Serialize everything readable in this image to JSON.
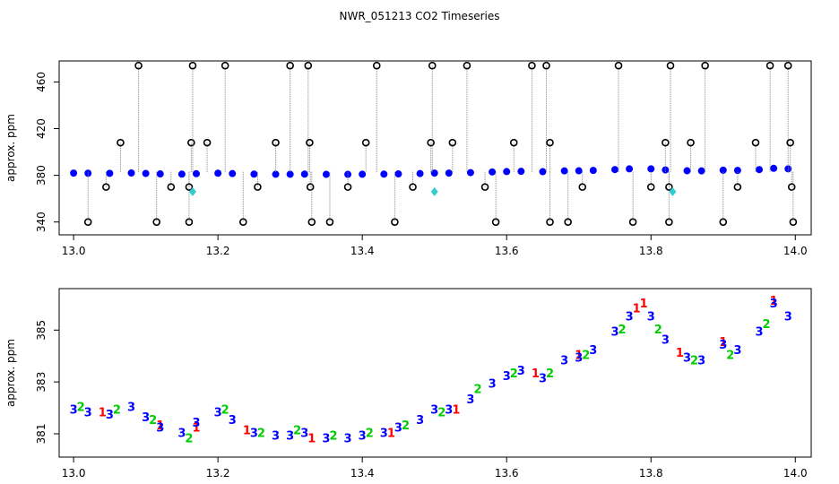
{
  "title": "NWR_051213  CO2 Timeseries",
  "chart_data": [
    {
      "type": "scatter",
      "ylabel": "approx. ppm",
      "xlim": [
        12.98,
        14.022
      ],
      "ylim": [
        329,
        478
      ],
      "xticks": [
        {
          "value": 13,
          "label": "13.0"
        },
        13.2,
        13.4,
        13.6,
        13.8,
        {
          "value": 14,
          "label": "14.0"
        }
      ],
      "yticks": [
        340,
        380,
        420,
        460
      ],
      "series": [
        {
          "color": "#0000ff",
          "shape": "circle",
          "x": [
            13.0,
            13.02,
            13.05,
            13.08,
            13.1,
            13.12,
            13.15,
            13.17,
            13.2,
            13.22,
            13.25,
            13.28,
            13.3,
            13.32,
            13.35,
            13.38,
            13.4,
            13.43,
            13.45,
            13.48,
            13.5,
            13.52,
            13.55,
            13.58,
            13.6,
            13.62,
            13.65,
            13.68,
            13.7,
            13.72,
            13.75,
            13.77,
            13.8,
            13.82,
            13.85,
            13.87,
            13.9,
            13.92,
            13.95,
            13.97,
            13.99
          ],
          "values": [
            381.9,
            381.8,
            381.7,
            382.0,
            381.6,
            381.2,
            381.0,
            381.4,
            381.8,
            381.5,
            381.0,
            380.9,
            380.9,
            381.0,
            380.8,
            380.8,
            380.9,
            381.0,
            381.2,
            381.5,
            381.9,
            381.9,
            382.3,
            382.9,
            383.2,
            383.4,
            383.1,
            383.8,
            383.9,
            384.2,
            384.9,
            385.5,
            385.5,
            384.6,
            383.9,
            383.8,
            384.4,
            384.2,
            384.9,
            386.0,
            385.5
          ]
        },
        {
          "color": "#000000",
          "shape": "ring",
          "drop_lines": true,
          "x": [
            13.02,
            13.045,
            13.065,
            13.09,
            13.115,
            13.135,
            13.16,
            13.16,
            13.163,
            13.165,
            13.185,
            13.21,
            13.235,
            13.255,
            13.28,
            13.3,
            13.325,
            13.327,
            13.328,
            13.33,
            13.355,
            13.38,
            13.405,
            13.42,
            13.445,
            13.47,
            13.495,
            13.497,
            13.525,
            13.545,
            13.57,
            13.585,
            13.61,
            13.635,
            13.655,
            13.66,
            13.66,
            13.685,
            13.705,
            13.755,
            13.775,
            13.8,
            13.82,
            13.825,
            13.825,
            13.827,
            13.855,
            13.875,
            13.9,
            13.92,
            13.945,
            13.965,
            13.99,
            13.993,
            13.995,
            13.997
          ],
          "values": [
            340,
            370,
            408,
            474,
            340,
            370,
            340,
            370,
            408,
            474,
            408,
            474,
            340,
            370,
            408,
            474,
            474,
            408,
            370,
            340,
            340,
            370,
            408,
            474,
            340,
            370,
            408,
            474,
            408,
            474,
            370,
            340,
            408,
            474,
            474,
            340,
            408,
            340,
            370,
            474,
            340,
            370,
            408,
            340,
            370,
            474,
            408,
            474,
            340,
            370,
            408,
            474,
            474,
            408,
            370,
            340
          ]
        },
        {
          "color": "#33cccc",
          "shape": "diamond",
          "x": [
            13.165,
            13.5,
            13.83
          ],
          "values": [
            366,
            366,
            366
          ]
        }
      ]
    },
    {
      "type": "scatter",
      "ylabel": "approx. ppm",
      "xlim": [
        12.98,
        14.022
      ],
      "ylim": [
        380.1,
        386.6
      ],
      "xticks": [
        {
          "value": 13,
          "label": "13.0"
        },
        13.2,
        13.4,
        13.6,
        13.8,
        {
          "value": 14,
          "label": "14.0"
        }
      ],
      "yticks": [
        381,
        383,
        385
      ],
      "series": [
        {
          "color": "#ff0000",
          "marker": "1",
          "x": [
            13.04,
            13.12,
            13.17,
            13.24,
            13.33,
            13.44,
            13.53,
            13.64,
            13.7,
            13.78,
            13.79,
            13.84,
            13.9,
            13.97
          ],
          "values": [
            381.8,
            381.3,
            381.2,
            381.1,
            380.8,
            381.0,
            381.9,
            383.3,
            384.0,
            385.8,
            386.0,
            384.1,
            384.5,
            386.1
          ]
        },
        {
          "color": "#00cc00",
          "marker": "2",
          "x": [
            13.01,
            13.06,
            13.11,
            13.16,
            13.21,
            13.26,
            13.31,
            13.36,
            13.41,
            13.46,
            13.51,
            13.56,
            13.61,
            13.66,
            13.71,
            13.76,
            13.81,
            13.86,
            13.91,
            13.96
          ],
          "values": [
            382.0,
            381.9,
            381.5,
            380.8,
            381.9,
            381.0,
            381.1,
            380.9,
            381.0,
            381.3,
            381.8,
            382.7,
            383.3,
            383.3,
            384.0,
            385.0,
            385.0,
            383.8,
            384.0,
            385.2
          ]
        },
        {
          "color": "#0000ff",
          "marker": "3",
          "x": [
            13.0,
            13.02,
            13.05,
            13.08,
            13.1,
            13.12,
            13.15,
            13.17,
            13.2,
            13.22,
            13.25,
            13.28,
            13.3,
            13.32,
            13.35,
            13.38,
            13.4,
            13.43,
            13.45,
            13.48,
            13.5,
            13.52,
            13.55,
            13.58,
            13.6,
            13.62,
            13.65,
            13.68,
            13.7,
            13.72,
            13.75,
            13.77,
            13.8,
            13.82,
            13.85,
            13.87,
            13.9,
            13.92,
            13.95,
            13.97,
            13.99
          ],
          "values": [
            381.9,
            381.8,
            381.7,
            382.0,
            381.6,
            381.2,
            381.0,
            381.4,
            381.8,
            381.5,
            381.0,
            380.9,
            380.9,
            381.0,
            380.8,
            380.8,
            380.9,
            381.0,
            381.2,
            381.5,
            381.9,
            381.9,
            382.3,
            382.9,
            383.2,
            383.4,
            383.1,
            383.8,
            383.9,
            384.2,
            384.9,
            385.5,
            385.5,
            384.6,
            383.9,
            383.8,
            384.4,
            384.2,
            384.9,
            386.0,
            385.5
          ]
        }
      ]
    }
  ]
}
